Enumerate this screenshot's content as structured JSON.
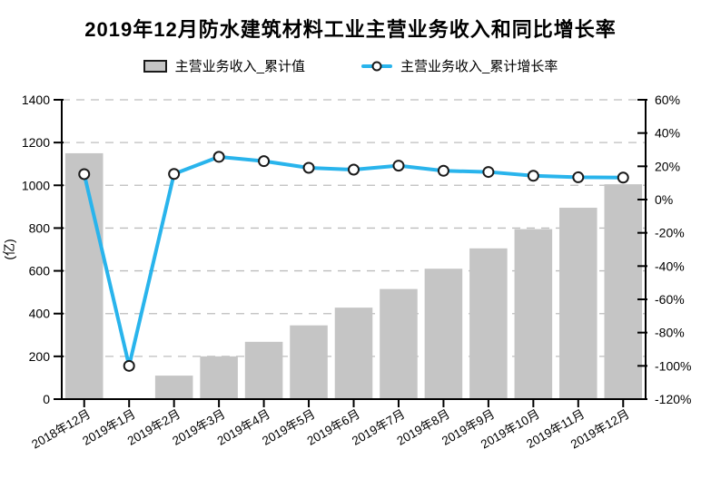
{
  "title": "2019年12月防水建筑材料工业主营业务收入和同比增长率",
  "legend": {
    "bar_label": "主营业务收入_累计值",
    "line_label": "主营业务收入_累计增长率"
  },
  "colors": {
    "bar_fill": "#c5c5c5",
    "line": "#29b4ec",
    "marker_fill": "#ffffff",
    "marker_stroke": "#1a1a1a",
    "grid": "#bdbdbd",
    "axis": "#000000",
    "text": "#000000"
  },
  "chart_data": {
    "type": "combo",
    "title": "2019年12月防水建筑材料工业主营业务收入和同比增长率",
    "categories": [
      "2018年12月",
      "2019年1月",
      "2019年2月",
      "2019年3月",
      "2019年4月",
      "2019年5月",
      "2019年6月",
      "2019年7月",
      "2019年8月",
      "2019年9月",
      "2019年10月",
      "2019年11月",
      "2019年12月"
    ],
    "series": [
      {
        "name": "主营业务收入_累计值",
        "type": "bar",
        "axis": "left",
        "unit": "亿元",
        "values": [
          1150,
          null,
          110,
          200,
          268,
          345,
          428,
          515,
          610,
          705,
          795,
          895,
          1005
        ]
      },
      {
        "name": "主营业务收入_累计增长率",
        "type": "line",
        "axis": "right",
        "unit": "%",
        "values": [
          15.3,
          -100,
          15.4,
          25.7,
          23.1,
          19.1,
          18.0,
          20.4,
          17.3,
          16.6,
          14.3,
          13.4,
          13.2
        ]
      }
    ],
    "left_axis": {
      "label": "(亿)",
      "min": 0,
      "max": 1400,
      "step": 200
    },
    "right_axis": {
      "label": "",
      "min": -120,
      "max": 60,
      "step": 20,
      "tick_suffix": "%"
    },
    "grid": {
      "horizontal": true,
      "style": "dashed"
    },
    "legend_position": "top",
    "x_tick_rotation": -30
  }
}
